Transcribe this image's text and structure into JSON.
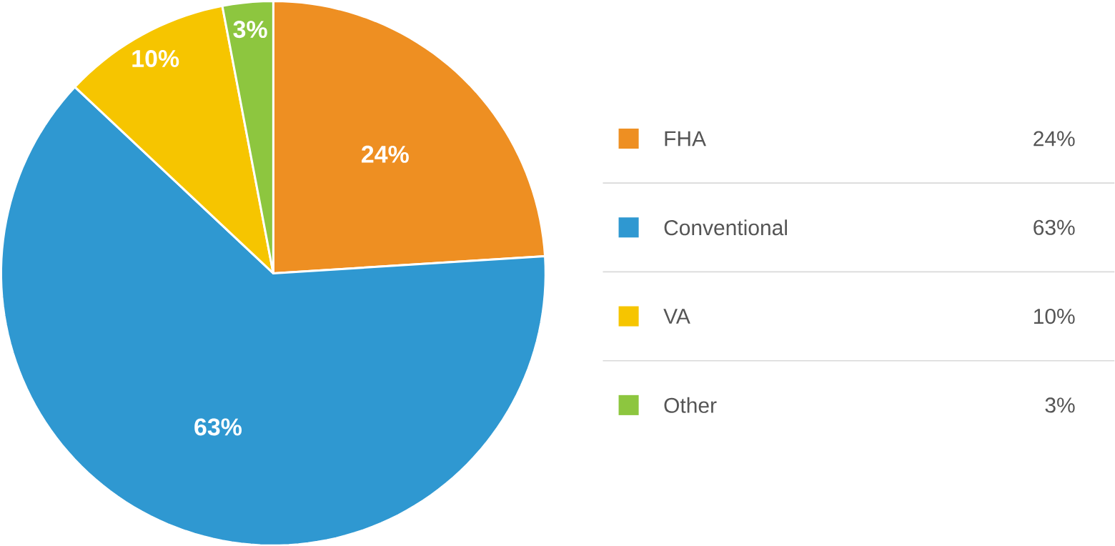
{
  "chart_data": {
    "type": "pie",
    "categories": [
      "FHA",
      "Conventional",
      "VA",
      "Other"
    ],
    "values": [
      24,
      63,
      10,
      3
    ],
    "colors": [
      "#ee8f22",
      "#2f98d1",
      "#f6c500",
      "#8dc63f"
    ],
    "value_labels": [
      "24%",
      "63%",
      "10%",
      "3%"
    ],
    "legend": "right"
  }
}
